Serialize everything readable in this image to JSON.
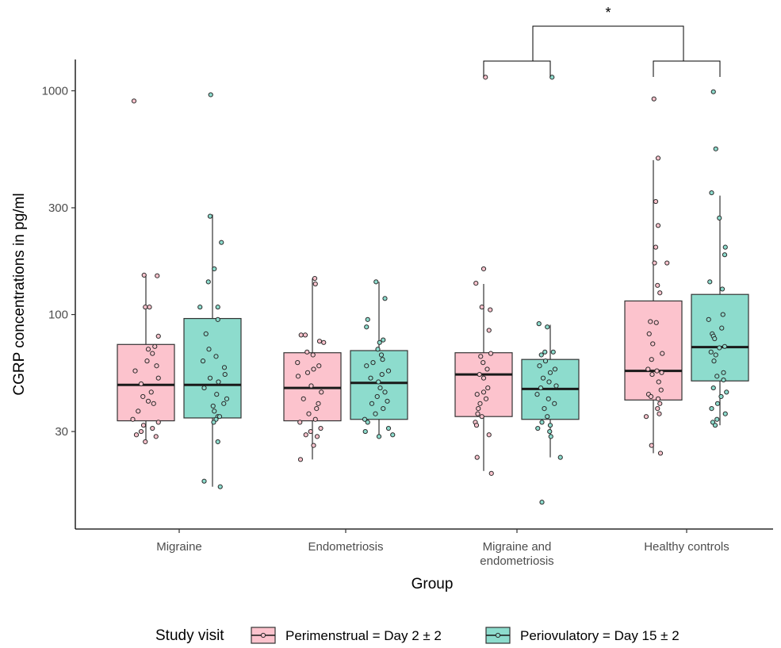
{
  "chart_data": {
    "type": "box",
    "title": "",
    "xlabel": "Group",
    "ylabel": "CGRP concentrations in pg/ml",
    "y_scale": "log10",
    "ylim": [
      11,
      1380
    ],
    "y_ticks": [
      30,
      100,
      300,
      1000
    ],
    "y_tick_labels": [
      "30",
      "100",
      "300",
      "1000"
    ],
    "grid": false,
    "categories": [
      "Migraine",
      "Endometriosis",
      "Migraine and endometriosis",
      "Healthy controls"
    ],
    "category_labels": [
      [
        "Migraine"
      ],
      [
        "Endometriosis"
      ],
      [
        "Migraine and",
        "endometriosis"
      ],
      [
        "Healthy controls"
      ]
    ],
    "legend": {
      "title": "Study visit",
      "position": "bottom"
    },
    "series": [
      {
        "name": "Perimenstrual = Day 2 ± 2",
        "color": "#fcc3cd",
        "boxes": [
          {
            "low": 27,
            "q1": 33.5,
            "median": 48.5,
            "q3": 73.5,
            "high": 150
          },
          {
            "low": 22.5,
            "q1": 33.5,
            "median": 47,
            "q3": 67.5,
            "high": 145
          },
          {
            "low": 20,
            "q1": 35,
            "median": 54,
            "q3": 67.5,
            "high": 137
          },
          {
            "low": 24,
            "q1": 41.5,
            "median": 56,
            "q3": 115,
            "high": 490
          }
        ],
        "points": [
          [
            {
              "y": 900,
              "x": -0.2
            },
            {
              "y": 150,
              "x": -0.03
            },
            {
              "y": 149,
              "x": 0.19
            },
            {
              "y": 108,
              "x": -0.01
            },
            {
              "y": 108,
              "x": 0.06
            },
            {
              "y": 80,
              "x": 0.21
            },
            {
              "y": 72,
              "x": 0.15
            },
            {
              "y": 70,
              "x": 0.04
            },
            {
              "y": 67,
              "x": 0.11
            },
            {
              "y": 62,
              "x": 0.02
            },
            {
              "y": 59,
              "x": 0.18
            },
            {
              "y": 56,
              "x": -0.18
            },
            {
              "y": 52,
              "x": 0.21
            },
            {
              "y": 49,
              "x": -0.08
            },
            {
              "y": 45,
              "x": 0.09
            },
            {
              "y": 43,
              "x": -0.05
            },
            {
              "y": 41,
              "x": 0.04
            },
            {
              "y": 40,
              "x": 0.13
            },
            {
              "y": 37,
              "x": -0.13
            },
            {
              "y": 34,
              "x": -0.22
            },
            {
              "y": 33,
              "x": 0.21
            },
            {
              "y": 32,
              "x": -0.04
            },
            {
              "y": 31,
              "x": 0.11
            },
            {
              "y": 30,
              "x": -0.08
            },
            {
              "y": 29,
              "x": -0.16
            },
            {
              "y": 28.5,
              "x": 0.17
            },
            {
              "y": 27,
              "x": -0.01
            }
          ],
          [
            {
              "y": 145,
              "x": 0.04
            },
            {
              "y": 137,
              "x": 0.05
            },
            {
              "y": 81,
              "x": -0.19
            },
            {
              "y": 81,
              "x": -0.12
            },
            {
              "y": 76,
              "x": 0.12
            },
            {
              "y": 75,
              "x": 0.19
            },
            {
              "y": 68,
              "x": -0.09
            },
            {
              "y": 66,
              "x": 0.01
            },
            {
              "y": 61,
              "x": -0.25
            },
            {
              "y": 59,
              "x": 0.11
            },
            {
              "y": 57,
              "x": 0.02
            },
            {
              "y": 55,
              "x": -0.08
            },
            {
              "y": 53,
              "x": -0.24
            },
            {
              "y": 48,
              "x": -0.02
            },
            {
              "y": 45,
              "x": 0.15
            },
            {
              "y": 42,
              "x": -0.15
            },
            {
              "y": 40,
              "x": 0.1
            },
            {
              "y": 38,
              "x": 0.07
            },
            {
              "y": 36,
              "x": -0.06
            },
            {
              "y": 34,
              "x": 0.05
            },
            {
              "y": 33,
              "x": -0.21
            },
            {
              "y": 31,
              "x": 0.14
            },
            {
              "y": 30,
              "x": -0.03
            },
            {
              "y": 29,
              "x": -0.11
            },
            {
              "y": 28.5,
              "x": 0.08
            },
            {
              "y": 26,
              "x": 0.02
            },
            {
              "y": 22.5,
              "x": -0.2
            }
          ],
          [
            {
              "y": 1150,
              "x": 0.03
            },
            {
              "y": 160,
              "x": 0.0
            },
            {
              "y": 138,
              "x": -0.13
            },
            {
              "y": 108,
              "x": -0.03
            },
            {
              "y": 105,
              "x": 0.11
            },
            {
              "y": 85,
              "x": 0.09
            },
            {
              "y": 67,
              "x": 0.12
            },
            {
              "y": 65,
              "x": -0.05
            },
            {
              "y": 61,
              "x": -0.01
            },
            {
              "y": 57,
              "x": 0.06
            },
            {
              "y": 54,
              "x": -0.07
            },
            {
              "y": 52,
              "x": 0.0
            },
            {
              "y": 47,
              "x": 0.07
            },
            {
              "y": 45,
              "x": 0.0
            },
            {
              "y": 44,
              "x": -0.11
            },
            {
              "y": 42,
              "x": 0.04
            },
            {
              "y": 40,
              "x": -0.06
            },
            {
              "y": 38,
              "x": -0.09
            },
            {
              "y": 36,
              "x": -0.1
            },
            {
              "y": 35,
              "x": -0.03
            },
            {
              "y": 33,
              "x": -0.14
            },
            {
              "y": 32,
              "x": -0.12
            },
            {
              "y": 29,
              "x": 0.09
            },
            {
              "y": 23,
              "x": -0.11
            },
            {
              "y": 19.5,
              "x": 0.13
            }
          ],
          [
            {
              "y": 920,
              "x": 0.01
            },
            {
              "y": 500,
              "x": 0.08
            },
            {
              "y": 320,
              "x": 0.04
            },
            {
              "y": 250,
              "x": 0.08
            },
            {
              "y": 200,
              "x": 0.04
            },
            {
              "y": 170,
              "x": 0.02
            },
            {
              "y": 170,
              "x": 0.23
            },
            {
              "y": 135,
              "x": 0.07
            },
            {
              "y": 125,
              "x": 0.11
            },
            {
              "y": 93,
              "x": -0.05
            },
            {
              "y": 92,
              "x": 0.05
            },
            {
              "y": 82,
              "x": -0.07
            },
            {
              "y": 74,
              "x": -0.01
            },
            {
              "y": 67,
              "x": 0.15
            },
            {
              "y": 63,
              "x": -0.03
            },
            {
              "y": 57,
              "x": -0.09
            },
            {
              "y": 56,
              "x": 0.06
            },
            {
              "y": 55,
              "x": 0.14
            },
            {
              "y": 54,
              "x": -0.02
            },
            {
              "y": 50,
              "x": 0.09
            },
            {
              "y": 46,
              "x": 0.13
            },
            {
              "y": 44,
              "x": -0.08
            },
            {
              "y": 43,
              "x": -0.04
            },
            {
              "y": 42,
              "x": 0.08
            },
            {
              "y": 40,
              "x": 0.11
            },
            {
              "y": 38,
              "x": 0.07
            },
            {
              "y": 35,
              "x": -0.12
            },
            {
              "y": 36,
              "x": 0.1
            },
            {
              "y": 26,
              "x": -0.03
            },
            {
              "y": 24,
              "x": 0.12
            }
          ]
        ]
      },
      {
        "name": "Periovulatory = Day 15 ± 2",
        "color": "#8ddccd",
        "boxes": [
          {
            "low": 17,
            "q1": 34.5,
            "median": 48.5,
            "q3": 96,
            "high": 280
          },
          {
            "low": 28.5,
            "q1": 34,
            "median": 49.5,
            "q3": 69,
            "high": 140
          },
          {
            "low": 23,
            "q1": 34,
            "median": 46.5,
            "q3": 63,
            "high": 90
          },
          {
            "low": 32,
            "q1": 50.5,
            "median": 71.5,
            "q3": 123,
            "high": 340
          }
        ],
        "points": [
          [
            {
              "y": 960,
              "x": -0.03
            },
            {
              "y": 275,
              "x": -0.04
            },
            {
              "y": 210,
              "x": 0.15
            },
            {
              "y": 160,
              "x": 0.03
            },
            {
              "y": 140,
              "x": -0.07
            },
            {
              "y": 108,
              "x": -0.21
            },
            {
              "y": 108,
              "x": 0.09
            },
            {
              "y": 95,
              "x": 0.09
            },
            {
              "y": 82,
              "x": -0.11
            },
            {
              "y": 70,
              "x": -0.06
            },
            {
              "y": 65,
              "x": 0.06
            },
            {
              "y": 62,
              "x": -0.16
            },
            {
              "y": 58,
              "x": 0.2
            },
            {
              "y": 54,
              "x": 0.21
            },
            {
              "y": 52,
              "x": -0.04
            },
            {
              "y": 50,
              "x": 0.1
            },
            {
              "y": 47,
              "x": -0.14
            },
            {
              "y": 44,
              "x": 0.07
            },
            {
              "y": 42,
              "x": 0.24
            },
            {
              "y": 40,
              "x": 0.19
            },
            {
              "y": 39,
              "x": 0.01
            },
            {
              "y": 37,
              "x": 0.03
            },
            {
              "y": 35,
              "x": 0.09
            },
            {
              "y": 35,
              "x": 0.12
            },
            {
              "y": 34,
              "x": 0.06
            },
            {
              "y": 33,
              "x": 0.02
            },
            {
              "y": 27,
              "x": 0.09
            },
            {
              "y": 18,
              "x": -0.14
            },
            {
              "y": 17,
              "x": 0.13
            }
          ],
          [
            {
              "y": 140,
              "x": -0.05
            },
            {
              "y": 118,
              "x": 0.1
            },
            {
              "y": 95,
              "x": -0.19
            },
            {
              "y": 88,
              "x": -0.21
            },
            {
              "y": 77,
              "x": 0.07
            },
            {
              "y": 75,
              "x": 0.01
            },
            {
              "y": 70,
              "x": -0.02
            },
            {
              "y": 66,
              "x": 0.04
            },
            {
              "y": 63,
              "x": 0.06
            },
            {
              "y": 61,
              "x": -0.1
            },
            {
              "y": 59,
              "x": -0.21
            },
            {
              "y": 56,
              "x": 0.16
            },
            {
              "y": 54,
              "x": 0.05
            },
            {
              "y": 52,
              "x": -0.14
            },
            {
              "y": 50,
              "x": -0.01
            },
            {
              "y": 47,
              "x": 0.02
            },
            {
              "y": 45,
              "x": 0.1
            },
            {
              "y": 43,
              "x": -0.03
            },
            {
              "y": 41,
              "x": 0.14
            },
            {
              "y": 40,
              "x": -0.12
            },
            {
              "y": 38,
              "x": 0.07
            },
            {
              "y": 36,
              "x": -0.06
            },
            {
              "y": 34,
              "x": -0.24
            },
            {
              "y": 33,
              "x": -0.19
            },
            {
              "y": 31,
              "x": 0.16
            },
            {
              "y": 30,
              "x": -0.23
            },
            {
              "y": 29,
              "x": 0.23
            },
            {
              "y": 28.5,
              "x": 0.0
            }
          ],
          [
            {
              "y": 1150,
              "x": 0.03
            },
            {
              "y": 91,
              "x": -0.19
            },
            {
              "y": 88,
              "x": -0.05
            },
            {
              "y": 68,
              "x": -0.09
            },
            {
              "y": 68,
              "x": 0.05
            },
            {
              "y": 66,
              "x": -0.15
            },
            {
              "y": 62,
              "x": -0.08
            },
            {
              "y": 59,
              "x": -0.18
            },
            {
              "y": 57,
              "x": 0.08
            },
            {
              "y": 55,
              "x": 0.0
            },
            {
              "y": 52,
              "x": -0.12
            },
            {
              "y": 50,
              "x": -0.02
            },
            {
              "y": 48,
              "x": 0.1
            },
            {
              "y": 47,
              "x": -0.16
            },
            {
              "y": 44,
              "x": -0.22
            },
            {
              "y": 42,
              "x": -0.03
            },
            {
              "y": 40,
              "x": 0.07
            },
            {
              "y": 38,
              "x": -0.1
            },
            {
              "y": 35,
              "x": -0.05
            },
            {
              "y": 33,
              "x": -0.14
            },
            {
              "y": 32,
              "x": 0.0
            },
            {
              "y": 31,
              "x": -0.21
            },
            {
              "y": 30,
              "x": -0.01
            },
            {
              "y": 28.5,
              "x": 0.01
            },
            {
              "y": 23,
              "x": 0.17
            },
            {
              "y": 14.5,
              "x": -0.14
            }
          ],
          [
            {
              "y": 990,
              "x": -0.11
            },
            {
              "y": 550,
              "x": -0.07
            },
            {
              "y": 350,
              "x": -0.14
            },
            {
              "y": 270,
              "x": -0.01
            },
            {
              "y": 200,
              "x": 0.09
            },
            {
              "y": 185,
              "x": 0.08
            },
            {
              "y": 140,
              "x": -0.17
            },
            {
              "y": 130,
              "x": 0.04
            },
            {
              "y": 100,
              "x": 0.05
            },
            {
              "y": 95,
              "x": -0.19
            },
            {
              "y": 87,
              "x": 0.03
            },
            {
              "y": 82,
              "x": -0.13
            },
            {
              "y": 80,
              "x": -0.11
            },
            {
              "y": 78,
              "x": -0.09
            },
            {
              "y": 72,
              "x": 0.08
            },
            {
              "y": 71,
              "x": -0.01
            },
            {
              "y": 68,
              "x": -0.15
            },
            {
              "y": 66,
              "x": -0.07
            },
            {
              "y": 62,
              "x": -0.1
            },
            {
              "y": 55,
              "x": 0.06
            },
            {
              "y": 53,
              "x": -0.05
            },
            {
              "y": 51,
              "x": 0.06
            },
            {
              "y": 47,
              "x": -0.11
            },
            {
              "y": 45,
              "x": 0.11
            },
            {
              "y": 43,
              "x": 0.02
            },
            {
              "y": 40,
              "x": -0.04
            },
            {
              "y": 38,
              "x": -0.14
            },
            {
              "y": 36,
              "x": 0.09
            },
            {
              "y": 34,
              "x": -0.05
            },
            {
              "y": 33,
              "x": -0.12
            },
            {
              "y": 32,
              "x": -0.08
            }
          ]
        ]
      }
    ],
    "annotations": {
      "significance_label": "*",
      "brackets": [
        "Migraine and endometriosis",
        "Healthy controls"
      ]
    }
  }
}
